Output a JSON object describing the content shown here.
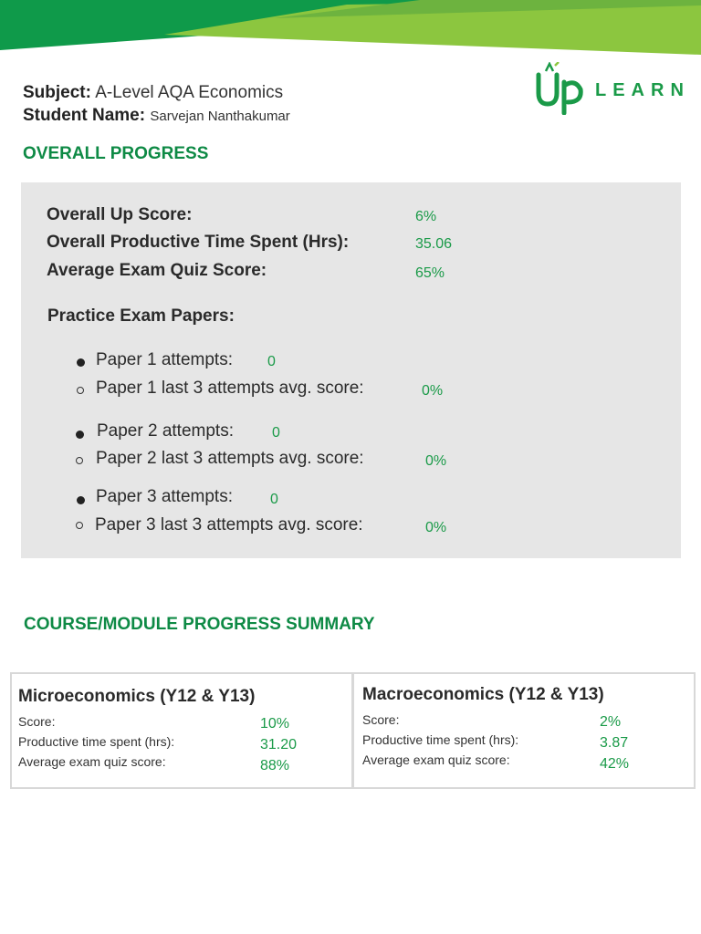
{
  "header": {
    "subject_label": "Subject:",
    "subject_value": "A-Level AQA Economics",
    "student_label": "Student Name:",
    "student_value": "Sarvejan Nanthakumar"
  },
  "logo": {
    "text": "LEARN",
    "mark": "Up"
  },
  "overall": {
    "title": "OVERALL PROGRESS",
    "up_score_label": "Overall Up Score:",
    "up_score_value": "6%",
    "time_label": "Overall Productive Time Spent (Hrs):",
    "time_value": "35.06",
    "quiz_label": "Average Exam Quiz Score:",
    "quiz_value": "65%",
    "practice_title": "Practice Exam Papers:",
    "papers": [
      {
        "attempts_label": "Paper 1 attempts:",
        "attempts_value": "0",
        "avg_label": "Paper 1 last 3 attempts avg. score:",
        "avg_value": "0%"
      },
      {
        "attempts_label": "Paper 2 attempts:",
        "attempts_value": "0",
        "avg_label": "Paper 2 last 3 attempts avg. score:",
        "avg_value": "0%"
      },
      {
        "attempts_label": "Paper 3 attempts:",
        "attempts_value": "0",
        "avg_label": "Paper 3 last 3 attempts avg. score:",
        "avg_value": "0%"
      }
    ]
  },
  "modules": {
    "title": "COURSE/MODULE PROGRESS SUMMARY",
    "items": [
      {
        "name": "Microeconomics (Y12 & Y13)",
        "score_label": "Score:",
        "score_value": "10%",
        "time_label": "Productive time spent (hrs):",
        "time_value": "31.20",
        "quiz_label": "Average exam quiz score:",
        "quiz_value": "88%"
      },
      {
        "name": "Macroeconomics (Y12 & Y13)",
        "score_label": "Score:",
        "score_value": "2%",
        "time_label": "Productive time spent (hrs):",
        "time_value": "3.87",
        "quiz_label": "Average exam quiz score:",
        "quiz_value": "42%"
      }
    ]
  },
  "colors": {
    "brand_green": "#1a9a48",
    "banner_dark": "#0f9a4a",
    "banner_light": "#8cc63f",
    "panel_bg": "#e6e6e6"
  }
}
